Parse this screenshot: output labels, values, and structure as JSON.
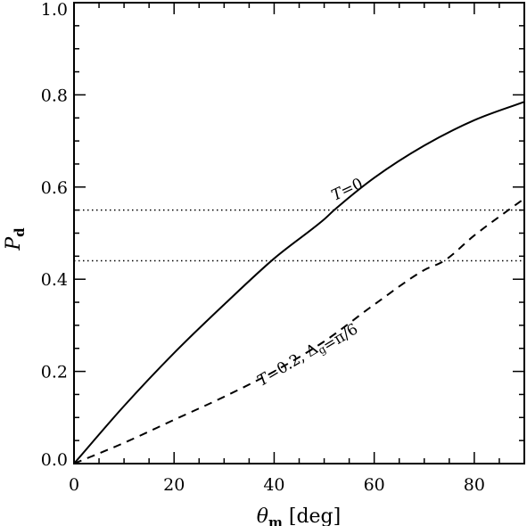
{
  "chart_data": {
    "type": "line",
    "xlabel": {
      "symbol": "θ",
      "sub": "m",
      "unit": "[deg]"
    },
    "ylabel": {
      "symbol": "P",
      "sub": "d"
    },
    "xlim": [
      0,
      90
    ],
    "ylim": [
      0,
      1.0
    ],
    "xticks": [
      0,
      20,
      40,
      60,
      80
    ],
    "yticks": [
      0.0,
      0.2,
      0.4,
      0.6,
      0.8,
      1.0
    ],
    "xtick_labels": [
      "0",
      "20",
      "40",
      "60",
      "80"
    ],
    "ytick_labels": [
      "0.0",
      "0.2",
      "0.4",
      "0.6",
      "0.8",
      "1.0"
    ],
    "grid": false,
    "series": [
      {
        "style": "solid",
        "x": [
          0,
          10,
          20,
          30,
          40,
          50,
          52,
          60,
          70,
          80,
          90
        ],
        "y": [
          0.0,
          0.125,
          0.24,
          0.345,
          0.445,
          0.53,
          0.55,
          0.62,
          0.69,
          0.745,
          0.785
        ]
      },
      {
        "style": "dashed",
        "x": [
          0,
          10,
          20,
          30,
          40,
          50,
          60,
          70,
          74,
          80,
          90
        ],
        "y": [
          0.0,
          0.045,
          0.095,
          0.145,
          0.2,
          0.265,
          0.345,
          0.42,
          0.44,
          0.495,
          0.575
        ]
      }
    ],
    "hlines": [
      {
        "y": 0.55,
        "style": "dotted"
      },
      {
        "y": 0.44,
        "style": "dotted"
      }
    ],
    "annotations": [
      {
        "text_parts": [
          {
            "t": "T",
            "italic": true
          },
          {
            "t": "=0"
          }
        ],
        "x": 55,
        "y": 0.585,
        "rotate_deg": -25
      },
      {
        "text_parts": [
          {
            "t": "T",
            "italic": true
          },
          {
            "t": "=0.2, Δ"
          },
          {
            "t": "g",
            "sub": true
          },
          {
            "t": "=π/6"
          }
        ],
        "x": 47,
        "y": 0.23,
        "rotate_deg": -31
      }
    ]
  }
}
